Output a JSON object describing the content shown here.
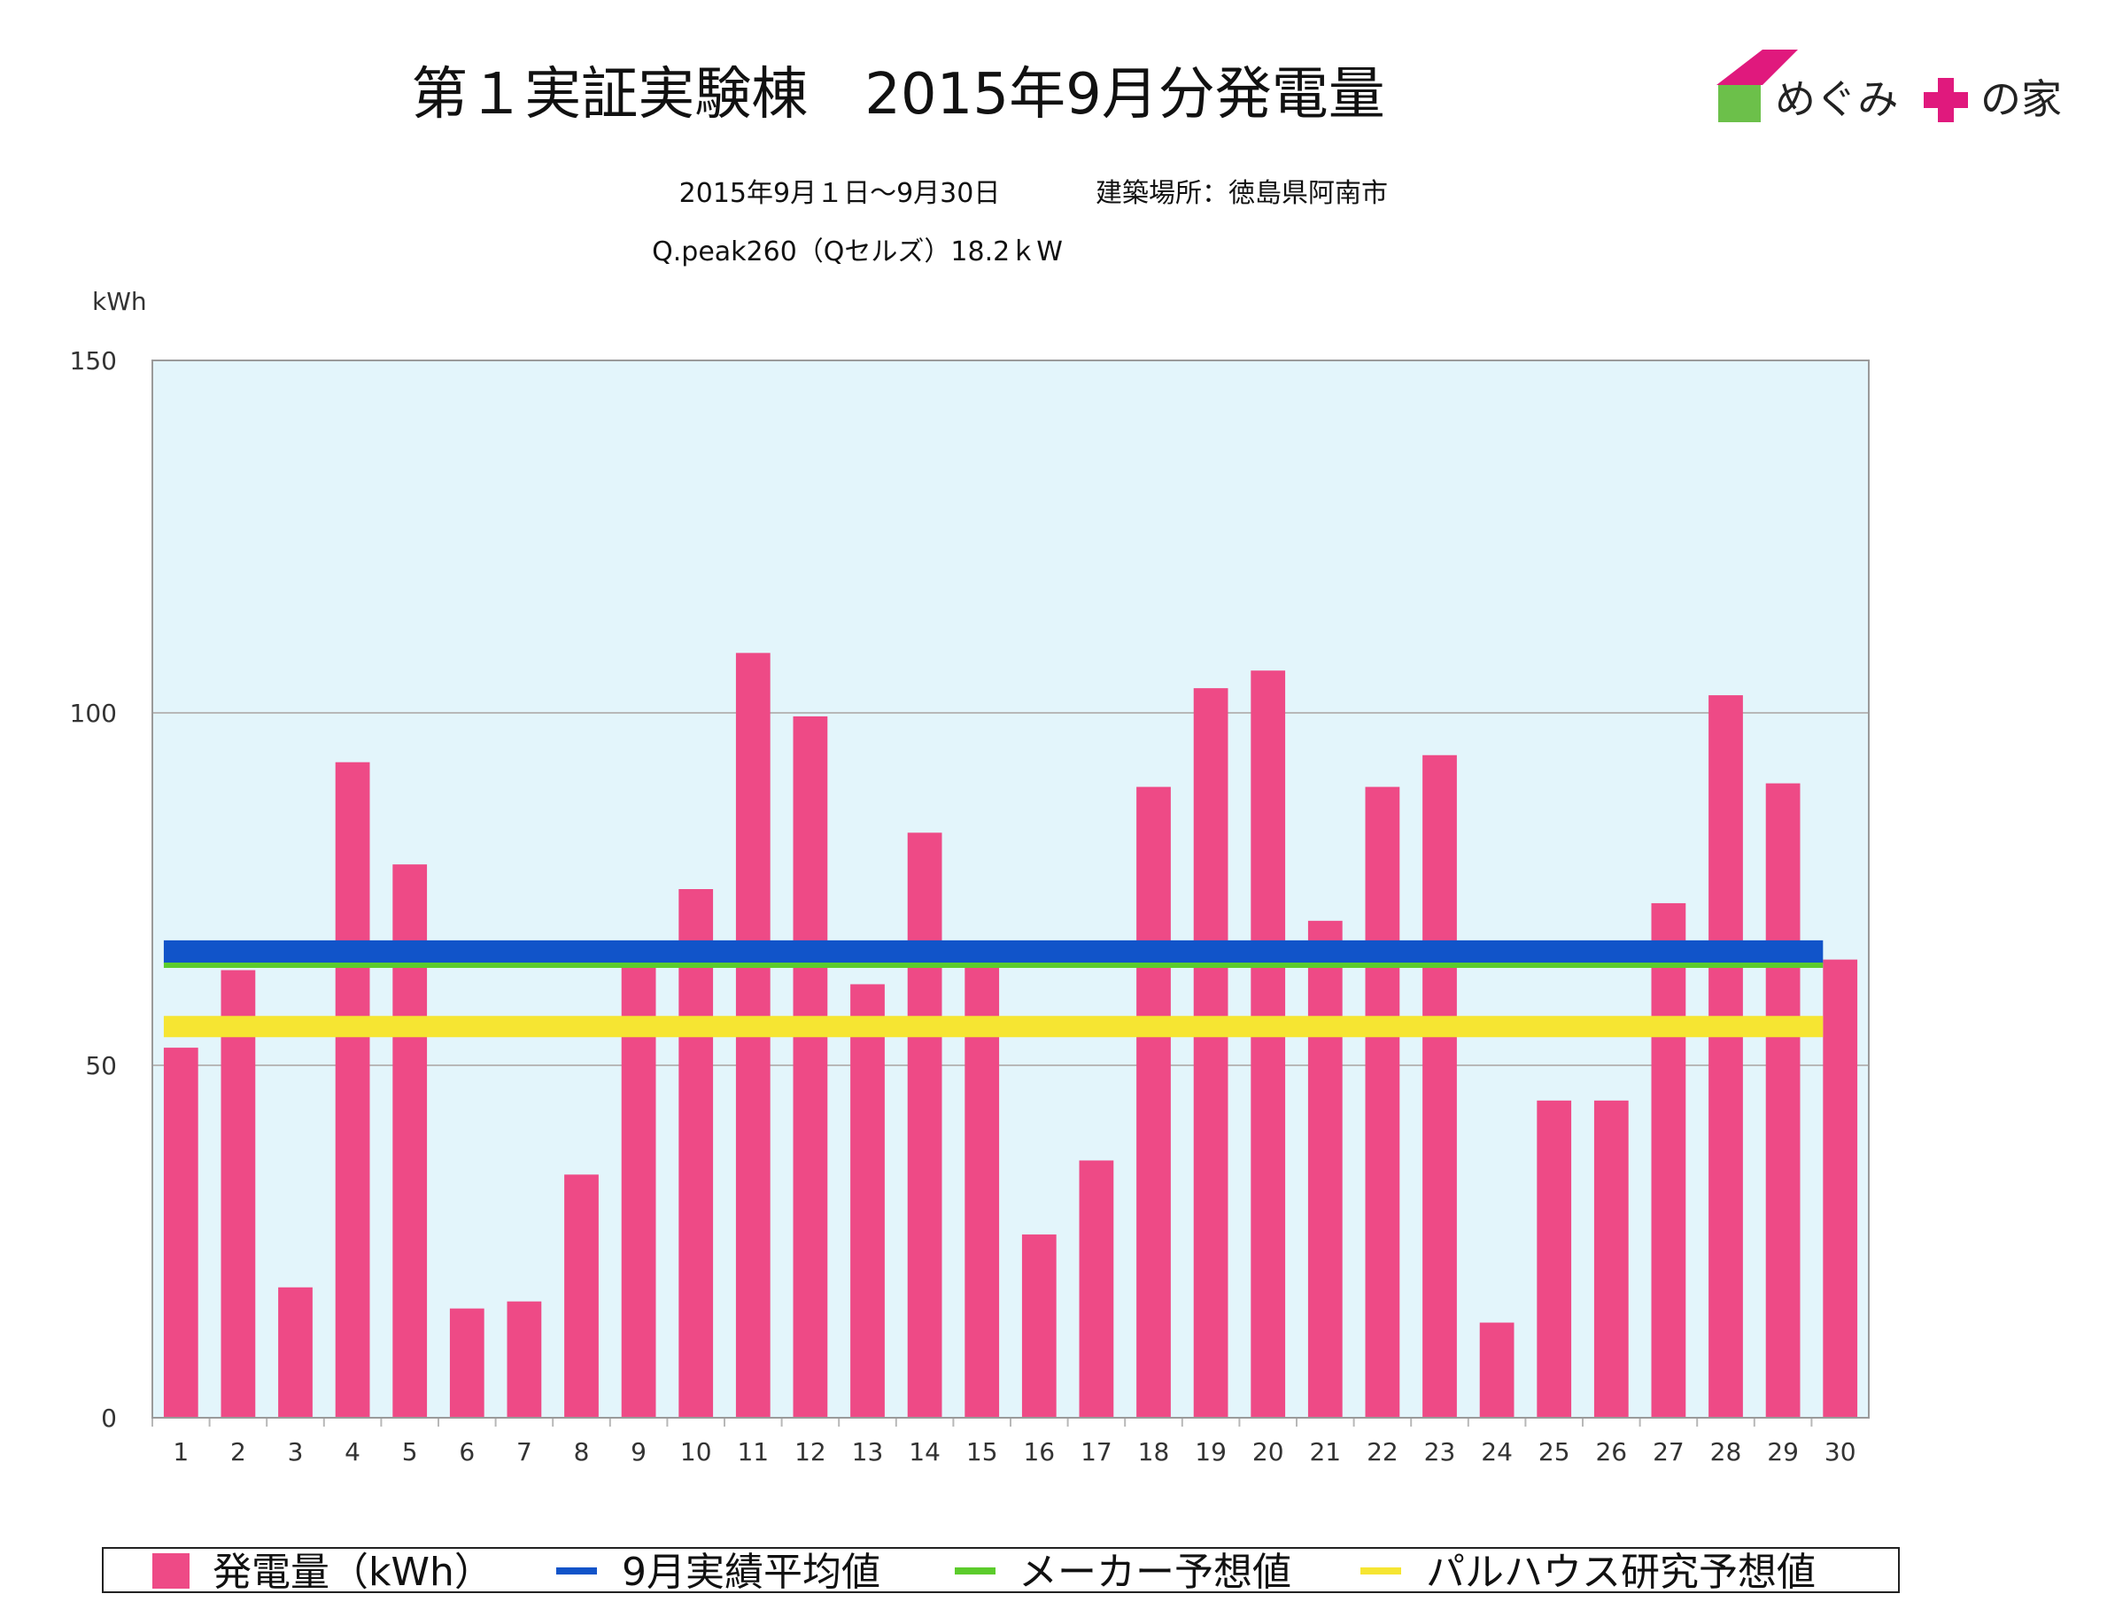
{
  "header": {
    "title": "第１実証実験棟　2015年9月分発電量",
    "period": "2015年9月１日〜9月30日",
    "location": "建築場所：徳島県阿南市",
    "system": "Q.peak260（Qセルズ）18.2ｋW"
  },
  "logo": {
    "text_left": "めぐみ",
    "text_right": "の家",
    "colors": {
      "roof": "#e0197d",
      "wall": "#6cc04a",
      "cross": "#e0197d"
    }
  },
  "colors": {
    "plot_bg": "#e3f5fb",
    "bar": "#ee4a86",
    "avg_line": "#1154c9",
    "maker_line": "#5ccc2c",
    "research_line": "#f6e532",
    "grid": "#b8b8b8"
  },
  "chart_data": {
    "type": "bar",
    "title": "第１実証実験棟　2015年9月分発電量",
    "ylabel": "kWh",
    "xlabel": "",
    "ylim": [
      0,
      150
    ],
    "yticks": [
      0,
      50,
      100,
      150
    ],
    "grid": true,
    "legend_position": "bottom",
    "categories": [
      "1",
      "2",
      "3",
      "4",
      "5",
      "6",
      "7",
      "8",
      "9",
      "10",
      "11",
      "12",
      "13",
      "14",
      "15",
      "16",
      "17",
      "18",
      "19",
      "20",
      "21",
      "22",
      "23",
      "24",
      "25",
      "26",
      "27",
      "28",
      "29",
      "30"
    ],
    "series": [
      {
        "name": "発電量（kWh）",
        "type": "bar",
        "values": [
          52.5,
          63.5,
          18.5,
          93,
          78.5,
          15.5,
          16.5,
          34.5,
          65,
          75,
          108.5,
          99.5,
          61.5,
          83,
          64,
          26,
          36.5,
          89.5,
          103.5,
          106,
          70.5,
          89.5,
          94,
          13.5,
          45,
          45,
          73,
          102.5,
          90,
          65
        ]
      },
      {
        "name": "9月実績平均値",
        "type": "hline",
        "value": 66.1
      },
      {
        "name": "メーカー予想値",
        "type": "hline",
        "value": 64.2
      },
      {
        "name": "パルハウス研究予想値",
        "type": "hline",
        "value": 55.5
      }
    ]
  }
}
